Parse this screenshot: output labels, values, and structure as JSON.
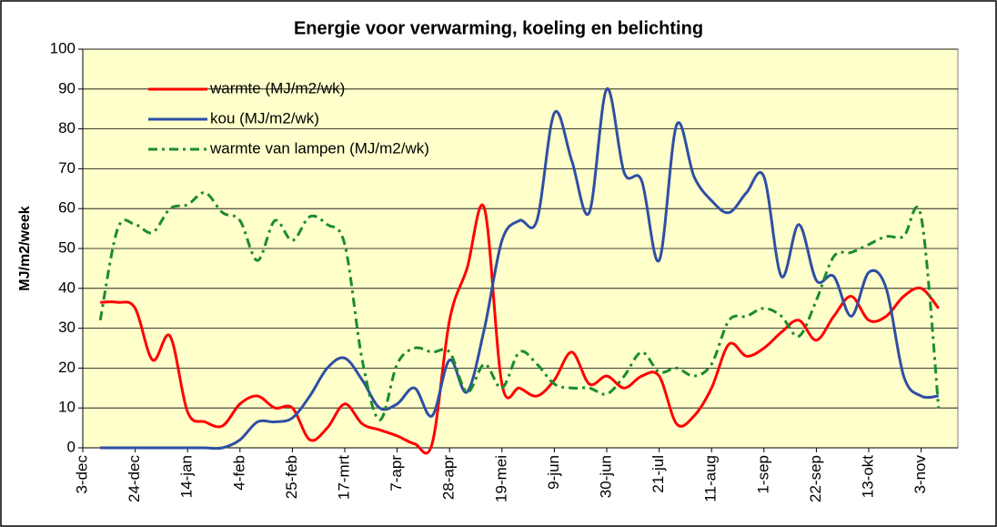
{
  "chart_data": {
    "type": "line",
    "title": "Energie voor verwarming, koeling en belichting",
    "y_label": "MJ/m2/week",
    "categories": [
      "3-dec",
      null,
      null,
      "24-dec",
      null,
      null,
      "14-jan",
      null,
      null,
      "4-feb",
      null,
      null,
      "25-feb",
      null,
      null,
      "17-mrt",
      null,
      null,
      "7-apr",
      null,
      null,
      "28-apr",
      null,
      null,
      "19-mei",
      null,
      null,
      "9-jun",
      null,
      null,
      "30-jun",
      null,
      null,
      "21-jul",
      null,
      null,
      "11-aug",
      null,
      null,
      "1-sep",
      null,
      null,
      "22-sep",
      null,
      null,
      "13-okt",
      null,
      null,
      "3-nov",
      null
    ],
    "series": [
      {
        "name": "warmte (MJ/m2/wk)",
        "color": "#ff0000",
        "dash": "solid",
        "values": [
          null,
          36.5,
          36.5,
          35,
          22,
          28,
          9,
          6.5,
          5.5,
          11,
          13,
          10,
          10,
          2,
          5,
          11,
          6,
          4.5,
          3,
          1,
          1,
          32,
          45,
          60,
          16,
          15,
          13,
          17,
          24,
          16,
          18,
          15,
          18,
          18,
          6,
          8,
          15,
          26,
          23,
          25,
          29,
          32,
          27,
          33,
          38,
          32,
          33,
          38,
          40,
          35
        ]
      },
      {
        "name": "kou (MJ/m2/wk)",
        "color": "#2e4fa3",
        "dash": "solid",
        "values": [
          null,
          0,
          0,
          0,
          0,
          0,
          0,
          0,
          0,
          2,
          6.5,
          6.5,
          7.5,
          13,
          20,
          22.5,
          17,
          10,
          11,
          15,
          8,
          22,
          14,
          30,
          52,
          57,
          57,
          84,
          72,
          59,
          90,
          69,
          67,
          47,
          81,
          68,
          62,
          59,
          64,
          68,
          43,
          56,
          42,
          43,
          33,
          44,
          40,
          18,
          13,
          13
        ]
      },
      {
        "name": "warmte van lampen (MJ/m2/wk)",
        "color": "#1a8c2e",
        "dash": "dashdot",
        "values": [
          null,
          32,
          55,
          56,
          54,
          60,
          61,
          64,
          59,
          57,
          47,
          57,
          52,
          58,
          56,
          51,
          22,
          7,
          21,
          25,
          24,
          24,
          14,
          21,
          15,
          24,
          21,
          16,
          15,
          15,
          13.5,
          18,
          24,
          19,
          20,
          18,
          21,
          32,
          33,
          35,
          33,
          28,
          37,
          48,
          49,
          51,
          53,
          53,
          58,
          10
        ]
      }
    ],
    "ylim": [
      0,
      100
    ],
    "yticks": [
      0,
      10,
      20,
      30,
      40,
      50,
      60,
      70,
      80,
      90,
      100
    ],
    "grid": true,
    "legend": "top-left",
    "plot_background": "#ffffcc"
  }
}
